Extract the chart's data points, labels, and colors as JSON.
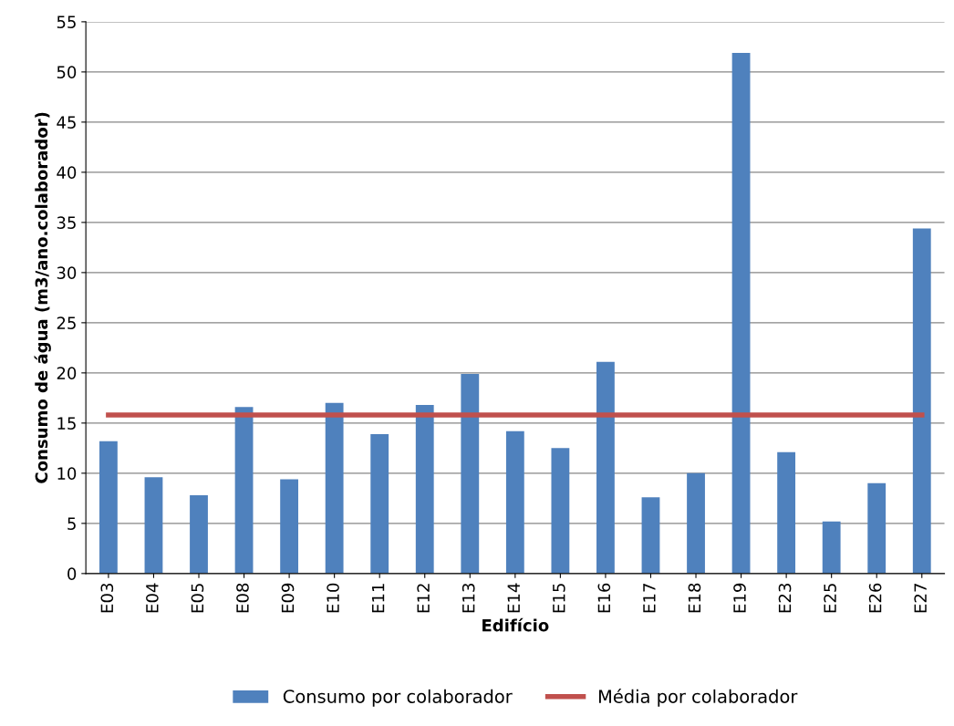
{
  "chart_data": {
    "type": "bar",
    "xlabel": "Edifício",
    "ylabel": "Consumo de água (m3/ano.colaborador)",
    "categories": [
      "E03",
      "E04",
      "E05",
      "E08",
      "E09",
      "E10",
      "E11",
      "E12",
      "E13",
      "E14",
      "E15",
      "E16",
      "E17",
      "E18",
      "E19",
      "E23",
      "E25",
      "E26",
      "E27"
    ],
    "series": [
      {
        "name": "Consumo por colaborador",
        "color": "#4f81bd",
        "values": [
          13.2,
          9.6,
          7.8,
          16.6,
          9.4,
          17.0,
          13.9,
          16.8,
          19.9,
          14.2,
          12.5,
          21.1,
          7.6,
          10.0,
          51.9,
          12.1,
          5.2,
          9.0,
          34.4
        ]
      },
      {
        "name": "Média por colaborador",
        "type": "line",
        "color": "#c0504d",
        "values": [
          15.8,
          15.8,
          15.8,
          15.8,
          15.8,
          15.8,
          15.8,
          15.8,
          15.8,
          15.8,
          15.8,
          15.8,
          15.8,
          15.8,
          15.8,
          15.8,
          15.8,
          15.8,
          15.8
        ]
      }
    ],
    "ylim": [
      0,
      55
    ],
    "yticks": [
      0,
      5,
      10,
      15,
      20,
      25,
      30,
      35,
      40,
      45,
      50,
      55
    ],
    "grid": "y",
    "legend": "bottom"
  }
}
